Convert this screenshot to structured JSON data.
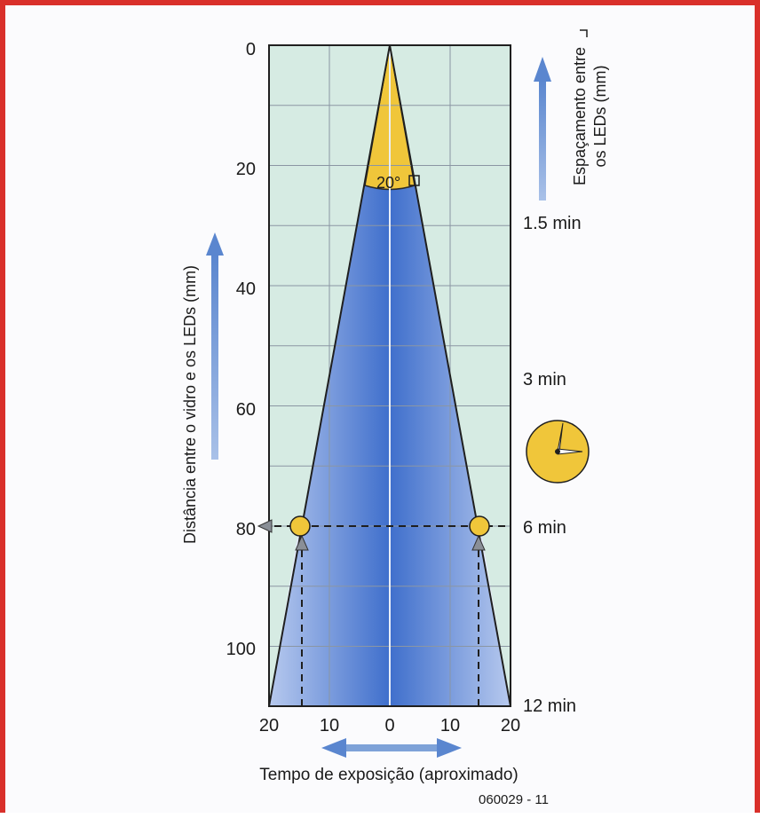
{
  "diagram": {
    "y_axis_label": "Distância entre o vidro e os LEDs (mm)",
    "x_axis_label": "Tempo de exposição (aproximado)",
    "right_axis_label_line1": "Espaçamento entre",
    "right_axis_label_line2": "os LEDs (mm)",
    "angle_label": "20°",
    "figure_code": "060029 - 11",
    "y_ticks": [
      "0",
      "20",
      "40",
      "60",
      "80",
      "100"
    ],
    "x_ticks": [
      "20",
      "10",
      "0",
      "10",
      "20"
    ],
    "time_marks": [
      {
        "label": "1.5 min",
        "distance_mm": 28
      },
      {
        "label": "3 min",
        "distance_mm": 55
      },
      {
        "label": "6 min",
        "distance_mm": 80
      },
      {
        "label": "12 min",
        "distance_mm": 110
      }
    ],
    "marker_distance_mm": 80,
    "marker_spacing_mm": 15,
    "cone_angle_deg": 20,
    "colors": {
      "frame": "#d9302a",
      "grid_bg": "#d6ebe3",
      "cone_blue": "#4d7ad1",
      "cone_yellow": "#f0c63a",
      "arrow_blue": "#7ea2d8"
    }
  }
}
